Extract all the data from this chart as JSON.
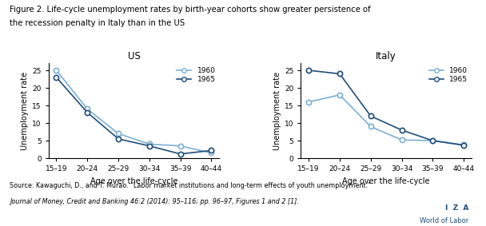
{
  "title_line1": "Figure 2. Life-cycle unemployment rates by birth-year cohorts show greater persistence of",
  "title_line2": "the recession penalty in Italy than in the US",
  "subtitle_us": "US",
  "subtitle_italy": "Italy",
  "age_labels": [
    "15–19",
    "20–24",
    "25–29",
    "30–34",
    "35–39",
    "40–44"
  ],
  "us_1960": [
    25,
    14,
    7,
    4,
    3.5,
    1.5
  ],
  "us_1965": [
    23,
    13,
    5.5,
    3.5,
    1.2,
    2.2
  ],
  "italy_1960": [
    16,
    18,
    9,
    5.2,
    5,
    3.8
  ],
  "italy_1965": [
    25,
    24,
    12,
    8,
    5,
    3.7
  ],
  "color_1960": "#7bafd4",
  "color_1965": "#1f4e79",
  "ylabel": "Unemployment rate",
  "xlabel": "Age over the life-cycle",
  "ylim": [
    0,
    27
  ],
  "yticks": [
    0,
    5,
    10,
    15,
    20,
    25
  ],
  "source_line1": "Source: Kawaguchi, D., and T. Murao. “Labor market institutions and long-term effects of youth unemployment.”",
  "source_line2": "Journal of Money, Credit and Banking 46:2 (2014): 95–116; pp. 96–97, Figures 1 and 2 [1].",
  "iza_line1": "I  Z  A",
  "iza_line2": "World of Labor",
  "background_color": "#ffffff",
  "border_color": "#aaaaaa",
  "fig_width": 6.08,
  "fig_height": 2.83
}
